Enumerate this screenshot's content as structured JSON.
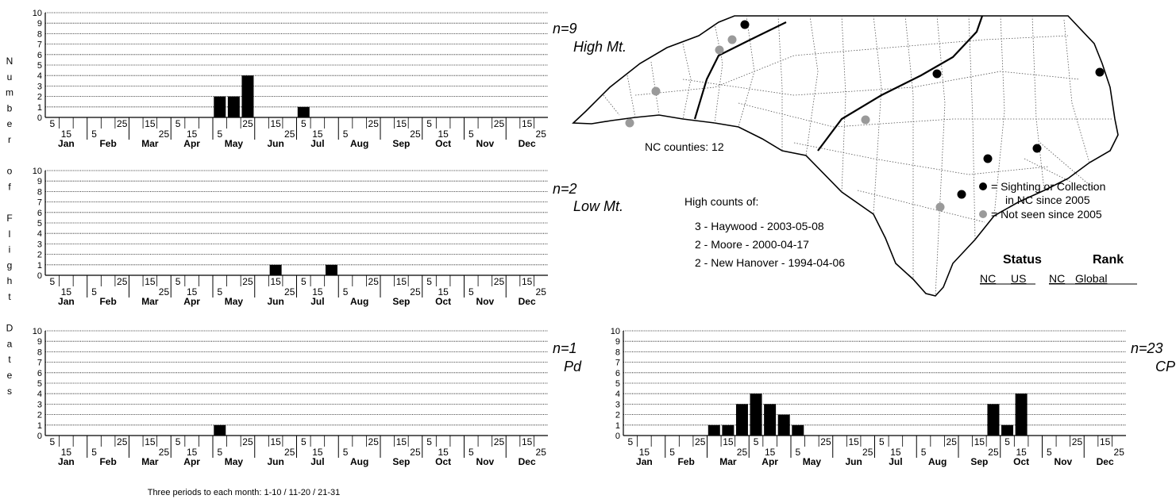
{
  "y_axis_label_letters": [
    "N",
    "u",
    "m",
    "b",
    "e",
    "r",
    "",
    "o",
    "f",
    "",
    "F",
    "l",
    "i",
    "g",
    "h",
    "t",
    "",
    "D",
    "a",
    "t",
    "e",
    "s"
  ],
  "chart_data": [
    {
      "type": "bar",
      "n_label": "n=9",
      "region": "High Mt.",
      "ylim": [
        0,
        10
      ],
      "yticks": [
        "0",
        "1",
        "2",
        "3",
        "4",
        "5",
        "6",
        "7",
        "8",
        "9",
        "10"
      ],
      "months": [
        "Jan",
        "Feb",
        "Mar",
        "Apr",
        "May",
        "Jun",
        "Jul",
        "Aug",
        "Sep",
        "Oct",
        "Nov",
        "Dec"
      ],
      "period_labels_top": [
        "5",
        "25",
        "15",
        "5",
        "25",
        "15",
        "5",
        "25",
        "15",
        "5",
        "25",
        "15"
      ],
      "period_labels_bottom": [
        "15",
        "5",
        "25",
        "15",
        "5",
        "25",
        "15",
        "5",
        "25",
        "15",
        "5",
        "25"
      ],
      "values": [
        0,
        0,
        0,
        0,
        0,
        0,
        0,
        0,
        0,
        0,
        0,
        0,
        2,
        2,
        4,
        0,
        0,
        0,
        1,
        0,
        0,
        0,
        0,
        0,
        0,
        0,
        0,
        0,
        0,
        0,
        0,
        0,
        0,
        0,
        0,
        0
      ]
    },
    {
      "type": "bar",
      "n_label": "n=2",
      "region": "Low Mt.",
      "ylim": [
        0,
        10
      ],
      "yticks": [
        "0",
        "1",
        "2",
        "3",
        "4",
        "5",
        "6",
        "7",
        "8",
        "9",
        "10"
      ],
      "months": [
        "Jan",
        "Feb",
        "Mar",
        "Apr",
        "May",
        "Jun",
        "Jul",
        "Aug",
        "Sep",
        "Oct",
        "Nov",
        "Dec"
      ],
      "period_labels_top": [
        "5",
        "25",
        "15",
        "5",
        "25",
        "15",
        "5",
        "25",
        "15",
        "5",
        "25",
        "15"
      ],
      "period_labels_bottom": [
        "15",
        "5",
        "25",
        "15",
        "5",
        "25",
        "15",
        "5",
        "25",
        "15",
        "5",
        "25"
      ],
      "values": [
        0,
        0,
        0,
        0,
        0,
        0,
        0,
        0,
        0,
        0,
        0,
        0,
        0,
        0,
        0,
        0,
        1,
        0,
        0,
        0,
        1,
        0,
        0,
        0,
        0,
        0,
        0,
        0,
        0,
        0,
        0,
        0,
        0,
        0,
        0,
        0
      ]
    },
    {
      "type": "bar",
      "n_label": "n=1",
      "region": "Pd",
      "ylim": [
        0,
        10
      ],
      "yticks": [
        "0",
        "1",
        "2",
        "3",
        "4",
        "5",
        "6",
        "7",
        "8",
        "9",
        "10"
      ],
      "months": [
        "Jan",
        "Feb",
        "Mar",
        "Apr",
        "May",
        "Jun",
        "Jul",
        "Aug",
        "Sep",
        "Oct",
        "Nov",
        "Dec"
      ],
      "period_labels_top": [
        "5",
        "25",
        "15",
        "5",
        "25",
        "15",
        "5",
        "25",
        "15",
        "5",
        "25",
        "15"
      ],
      "period_labels_bottom": [
        "15",
        "5",
        "25",
        "15",
        "5",
        "25",
        "15",
        "5",
        "25",
        "15",
        "5",
        "25"
      ],
      "values": [
        0,
        0,
        0,
        0,
        0,
        0,
        0,
        0,
        0,
        0,
        0,
        0,
        1,
        0,
        0,
        0,
        0,
        0,
        0,
        0,
        0,
        0,
        0,
        0,
        0,
        0,
        0,
        0,
        0,
        0,
        0,
        0,
        0,
        0,
        0,
        0
      ]
    },
    {
      "type": "bar",
      "n_label": "n=23",
      "region": "CP",
      "ylim": [
        0,
        10
      ],
      "yticks": [
        "0",
        "1",
        "2",
        "3",
        "4",
        "5",
        "6",
        "7",
        "8",
        "9",
        "10"
      ],
      "months": [
        "Jan",
        "Feb",
        "Mar",
        "Apr",
        "May",
        "Jun",
        "Jul",
        "Aug",
        "Sep",
        "Oct",
        "Nov",
        "Dec"
      ],
      "period_labels_top": [
        "5",
        "25",
        "15",
        "5",
        "25",
        "15",
        "5",
        "25",
        "15",
        "5",
        "25",
        "15"
      ],
      "period_labels_bottom": [
        "15",
        "5",
        "25",
        "15",
        "5",
        "25",
        "15",
        "5",
        "25",
        "15",
        "5",
        "25"
      ],
      "values": [
        0,
        0,
        0,
        0,
        0,
        0,
        1,
        1,
        3,
        4,
        3,
        2,
        1,
        0,
        0,
        0,
        0,
        0,
        0,
        0,
        0,
        0,
        0,
        0,
        0,
        0,
        3,
        1,
        4,
        0,
        0,
        0,
        0,
        0,
        0,
        0
      ]
    }
  ],
  "footnote": "Three periods to each month: 1-10 / 11-20 / 21-31",
  "map": {
    "county_count": "NC counties: 12",
    "legend_seen_line1": "= Sighting or Collection",
    "legend_seen_line2": "in NC since 2005",
    "legend_not_seen": "= Not seen since 2005",
    "seen_color": "#000000",
    "not_seen_color": "#9a9a9a"
  },
  "high_counts": {
    "title": "High counts of:",
    "items": [
      "3 - Haywood - 2003-05-08",
      "2 - Moore - 2000-04-17",
      "2 - New Hanover - 1994-04-06"
    ]
  },
  "status": {
    "status_heading": "Status",
    "rank_heading": "Rank",
    "cols": [
      "NC",
      "US",
      "NC",
      "Global"
    ]
  }
}
